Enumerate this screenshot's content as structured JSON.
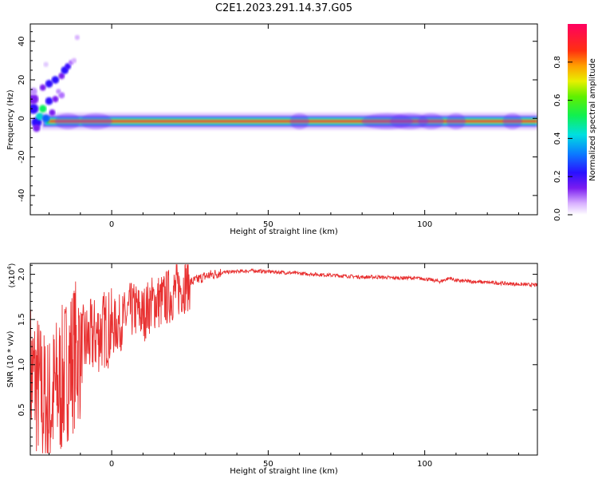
{
  "title": "C2E1.2023.291.14.37.G05",
  "colors": {
    "trace": "#e83030",
    "band_core": "#e83a3a",
    "band_edge": "#22d43a"
  },
  "chart_data": [
    {
      "type": "heatmap",
      "title": "C2E1.2023.291.14.37.G05",
      "xlabel": "Height of straight line (km)",
      "ylabel": "Frequency (Hz)",
      "xlim": [
        -26,
        136
      ],
      "ylim": [
        -50,
        49
      ],
      "x_ticks": [
        "0",
        "50",
        "100"
      ],
      "y_ticks": [
        "40",
        "20",
        "0",
        "-20",
        "-40"
      ],
      "colorbar": {
        "label": "Normalized spectral amplitude",
        "range": [
          0,
          1
        ],
        "ticks": [
          "0.0",
          "0.2",
          "0.4",
          "0.6",
          "0.8"
        ]
      },
      "signal_band": {
        "frequency": -1.5,
        "x_range": [
          -26,
          136
        ]
      }
    },
    {
      "type": "line",
      "xlabel": "Height of straight line (km)",
      "ylabel": "SNR (10 * v/v)",
      "y_multiplier": "(x10",
      "y_multiplier_exp": "4",
      "y_multiplier_close": ")",
      "xlim": [
        -26,
        136
      ],
      "ylim": [
        0.0,
        2.12
      ],
      "x_ticks": [
        "0",
        "50",
        "100"
      ],
      "y_ticks": [
        "0.5",
        "1.0",
        "1.5",
        "2.0"
      ],
      "series": [
        {
          "x": [
            -26,
            -24,
            -22,
            -20,
            -18,
            -16,
            -14,
            -12,
            -10,
            -8,
            -6,
            -4,
            -2,
            0,
            2,
            4,
            6,
            8,
            10,
            12,
            14,
            16,
            18,
            20,
            22,
            24,
            26,
            28,
            30,
            35,
            40,
            45,
            50,
            55,
            60,
            65,
            70,
            75,
            80,
            85,
            90,
            95,
            100,
            105,
            108,
            110,
            115,
            120,
            125,
            130,
            136
          ],
          "y": [
            0.9,
            0.8,
            0.6,
            0.5,
            0.7,
            0.8,
            1.0,
            1.1,
            1.2,
            1.25,
            1.3,
            1.35,
            1.4,
            1.4,
            1.45,
            1.5,
            1.6,
            1.6,
            1.55,
            1.65,
            1.7,
            1.7,
            1.75,
            1.8,
            1.85,
            1.9,
            1.92,
            1.95,
            1.98,
            2.02,
            2.03,
            2.04,
            2.03,
            2.02,
            2.01,
            2.0,
            1.99,
            1.98,
            1.97,
            1.97,
            1.96,
            1.96,
            1.95,
            1.92,
            1.96,
            1.93,
            1.92,
            1.91,
            1.9,
            1.89,
            1.88
          ]
        }
      ]
    }
  ]
}
